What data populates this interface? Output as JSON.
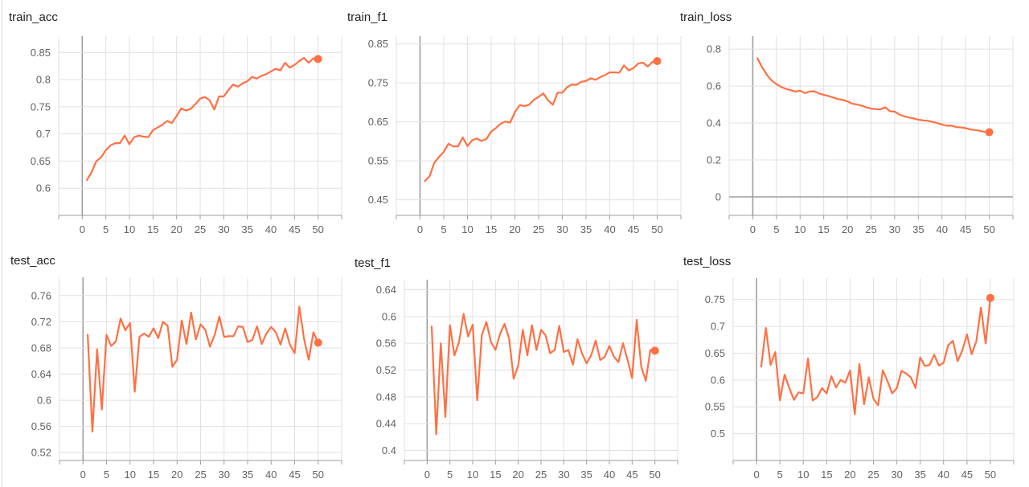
{
  "colors": {
    "line": "#ff7043",
    "grid": "#e0e0e0",
    "axis": "#9e9e9e",
    "text": "#616161",
    "title": "#212121"
  },
  "chart_data": [
    {
      "type": "line",
      "title": "train_acc",
      "xlim": [
        -5,
        55
      ],
      "ylim": [
        0.55,
        0.88
      ],
      "xticks": [
        0,
        5,
        10,
        15,
        20,
        25,
        30,
        35,
        40,
        45,
        50
      ],
      "yticks": [
        0.6,
        0.65,
        0.7,
        0.75,
        0.8,
        0.85
      ],
      "x": [
        1,
        2,
        3,
        4,
        5,
        6,
        7,
        8,
        9,
        10,
        11,
        12,
        13,
        14,
        15,
        16,
        17,
        18,
        19,
        20,
        21,
        22,
        23,
        24,
        25,
        26,
        27,
        28,
        29,
        30,
        31,
        32,
        33,
        34,
        35,
        36,
        37,
        38,
        39,
        40,
        41,
        42,
        43,
        44,
        45,
        46,
        47,
        48,
        49,
        50
      ],
      "y": [
        0.615,
        0.63,
        0.65,
        0.657,
        0.67,
        0.679,
        0.683,
        0.683,
        0.697,
        0.681,
        0.694,
        0.697,
        0.695,
        0.694,
        0.707,
        0.712,
        0.717,
        0.724,
        0.72,
        0.733,
        0.747,
        0.743,
        0.746,
        0.755,
        0.765,
        0.768,
        0.762,
        0.745,
        0.769,
        0.769,
        0.781,
        0.791,
        0.787,
        0.793,
        0.797,
        0.805,
        0.802,
        0.807,
        0.81,
        0.815,
        0.82,
        0.817,
        0.831,
        0.822,
        0.827,
        0.834,
        0.84,
        0.831,
        0.839,
        0.838
      ]
    },
    {
      "type": "line",
      "title": "train_f1",
      "xlim": [
        -5,
        55
      ],
      "ylim": [
        0.41,
        0.87
      ],
      "xticks": [
        0,
        5,
        10,
        15,
        20,
        25,
        30,
        35,
        40,
        45,
        50
      ],
      "yticks": [
        0.45,
        0.55,
        0.65,
        0.75,
        0.85
      ],
      "x": [
        1,
        2,
        3,
        4,
        5,
        6,
        7,
        8,
        9,
        10,
        11,
        12,
        13,
        14,
        15,
        16,
        17,
        18,
        19,
        20,
        21,
        22,
        23,
        24,
        25,
        26,
        27,
        28,
        29,
        30,
        31,
        32,
        33,
        34,
        35,
        36,
        37,
        38,
        39,
        40,
        41,
        42,
        43,
        44,
        45,
        46,
        47,
        48,
        49,
        50
      ],
      "y": [
        0.498,
        0.51,
        0.545,
        0.56,
        0.573,
        0.594,
        0.587,
        0.587,
        0.61,
        0.588,
        0.603,
        0.607,
        0.601,
        0.606,
        0.625,
        0.634,
        0.645,
        0.651,
        0.648,
        0.675,
        0.693,
        0.691,
        0.694,
        0.707,
        0.714,
        0.723,
        0.705,
        0.694,
        0.725,
        0.725,
        0.739,
        0.746,
        0.745,
        0.753,
        0.755,
        0.762,
        0.758,
        0.765,
        0.77,
        0.777,
        0.777,
        0.776,
        0.795,
        0.782,
        0.788,
        0.8,
        0.802,
        0.792,
        0.804,
        0.806
      ]
    },
    {
      "type": "line",
      "title": "train_loss",
      "xlim": [
        -5,
        55
      ],
      "ylim": [
        -0.1,
        0.87
      ],
      "xticks": [
        0,
        5,
        10,
        15,
        20,
        25,
        30,
        35,
        40,
        45,
        50
      ],
      "yticks": [
        0,
        0.2,
        0.4,
        0.6,
        0.8
      ],
      "x": [
        1,
        2,
        3,
        4,
        5,
        6,
        7,
        8,
        9,
        10,
        11,
        12,
        13,
        14,
        15,
        16,
        17,
        18,
        19,
        20,
        21,
        22,
        23,
        24,
        25,
        26,
        27,
        28,
        29,
        30,
        31,
        32,
        33,
        34,
        35,
        36,
        37,
        38,
        39,
        40,
        41,
        42,
        43,
        44,
        45,
        46,
        47,
        48,
        49,
        50
      ],
      "y": [
        0.75,
        0.7,
        0.66,
        0.63,
        0.61,
        0.595,
        0.585,
        0.578,
        0.57,
        0.575,
        0.562,
        0.57,
        0.572,
        0.56,
        0.552,
        0.546,
        0.538,
        0.53,
        0.525,
        0.517,
        0.505,
        0.5,
        0.494,
        0.485,
        0.478,
        0.475,
        0.474,
        0.485,
        0.464,
        0.462,
        0.446,
        0.436,
        0.43,
        0.425,
        0.418,
        0.414,
        0.412,
        0.406,
        0.4,
        0.392,
        0.385,
        0.386,
        0.378,
        0.376,
        0.372,
        0.365,
        0.362,
        0.358,
        0.352,
        0.35
      ]
    },
    {
      "type": "line",
      "title": "test_acc",
      "xlim": [
        -5,
        55
      ],
      "ylim": [
        0.508,
        0.788
      ],
      "xticks": [
        0,
        5,
        10,
        15,
        20,
        25,
        30,
        35,
        40,
        45,
        50
      ],
      "yticks": [
        0.52,
        0.56,
        0.6,
        0.64,
        0.68,
        0.72,
        0.76
      ],
      "x": [
        1,
        2,
        3,
        4,
        5,
        6,
        7,
        8,
        9,
        10,
        11,
        12,
        13,
        14,
        15,
        16,
        17,
        18,
        19,
        20,
        21,
        22,
        23,
        24,
        25,
        26,
        27,
        28,
        29,
        30,
        31,
        32,
        33,
        34,
        35,
        36,
        37,
        38,
        39,
        40,
        41,
        42,
        43,
        44,
        45,
        46,
        47,
        48,
        49,
        50
      ],
      "y": [
        0.7,
        0.552,
        0.678,
        0.586,
        0.7,
        0.683,
        0.69,
        0.725,
        0.707,
        0.718,
        0.613,
        0.697,
        0.702,
        0.697,
        0.71,
        0.695,
        0.72,
        0.714,
        0.651,
        0.662,
        0.722,
        0.686,
        0.734,
        0.693,
        0.716,
        0.708,
        0.682,
        0.7,
        0.728,
        0.697,
        0.698,
        0.698,
        0.713,
        0.712,
        0.689,
        0.692,
        0.713,
        0.686,
        0.702,
        0.712,
        0.704,
        0.685,
        0.71,
        0.685,
        0.672,
        0.743,
        0.694,
        0.662,
        0.704,
        0.688
      ]
    },
    {
      "type": "line",
      "title": "test_f1",
      "xlim": [
        -5,
        55
      ],
      "ylim": [
        0.385,
        0.655
      ],
      "xticks": [
        0,
        5,
        10,
        15,
        20,
        25,
        30,
        35,
        40,
        45,
        50
      ],
      "yticks": [
        0.4,
        0.44,
        0.48,
        0.52,
        0.56,
        0.6,
        0.64
      ],
      "x": [
        1,
        2,
        3,
        4,
        5,
        6,
        7,
        8,
        9,
        10,
        11,
        12,
        13,
        14,
        15,
        16,
        17,
        18,
        19,
        20,
        21,
        22,
        23,
        24,
        25,
        26,
        27,
        28,
        29,
        30,
        31,
        32,
        33,
        34,
        35,
        36,
        37,
        38,
        39,
        40,
        41,
        42,
        43,
        44,
        45,
        46,
        47,
        48,
        49,
        50
      ],
      "y": [
        0.585,
        0.424,
        0.56,
        0.45,
        0.587,
        0.542,
        0.562,
        0.604,
        0.57,
        0.588,
        0.475,
        0.572,
        0.592,
        0.562,
        0.55,
        0.574,
        0.589,
        0.567,
        0.507,
        0.527,
        0.58,
        0.542,
        0.587,
        0.55,
        0.58,
        0.572,
        0.545,
        0.55,
        0.586,
        0.547,
        0.55,
        0.528,
        0.566,
        0.545,
        0.53,
        0.542,
        0.564,
        0.535,
        0.54,
        0.556,
        0.54,
        0.532,
        0.56,
        0.535,
        0.508,
        0.595,
        0.525,
        0.504,
        0.55,
        0.549
      ]
    },
    {
      "type": "line",
      "title": "test_loss",
      "xlim": [
        -5,
        55
      ],
      "ylim": [
        0.45,
        0.79
      ],
      "xticks": [
        0,
        5,
        10,
        15,
        20,
        25,
        30,
        35,
        40,
        45,
        50
      ],
      "yticks": [
        0.5,
        0.55,
        0.6,
        0.65,
        0.7,
        0.75
      ],
      "x": [
        1,
        2,
        3,
        4,
        5,
        6,
        7,
        8,
        9,
        10,
        11,
        12,
        13,
        14,
        15,
        16,
        17,
        18,
        19,
        20,
        21,
        22,
        23,
        24,
        25,
        26,
        27,
        28,
        29,
        30,
        31,
        32,
        33,
        34,
        35,
        36,
        37,
        38,
        39,
        40,
        41,
        42,
        43,
        44,
        45,
        46,
        47,
        48,
        49,
        50
      ],
      "y": [
        0.625,
        0.697,
        0.628,
        0.652,
        0.562,
        0.61,
        0.585,
        0.563,
        0.577,
        0.575,
        0.64,
        0.562,
        0.568,
        0.585,
        0.575,
        0.607,
        0.586,
        0.6,
        0.595,
        0.618,
        0.536,
        0.63,
        0.555,
        0.605,
        0.565,
        0.553,
        0.618,
        0.598,
        0.575,
        0.585,
        0.617,
        0.612,
        0.605,
        0.585,
        0.642,
        0.626,
        0.628,
        0.647,
        0.627,
        0.632,
        0.665,
        0.673,
        0.635,
        0.655,
        0.685,
        0.648,
        0.672,
        0.735,
        0.668,
        0.753
      ]
    }
  ]
}
